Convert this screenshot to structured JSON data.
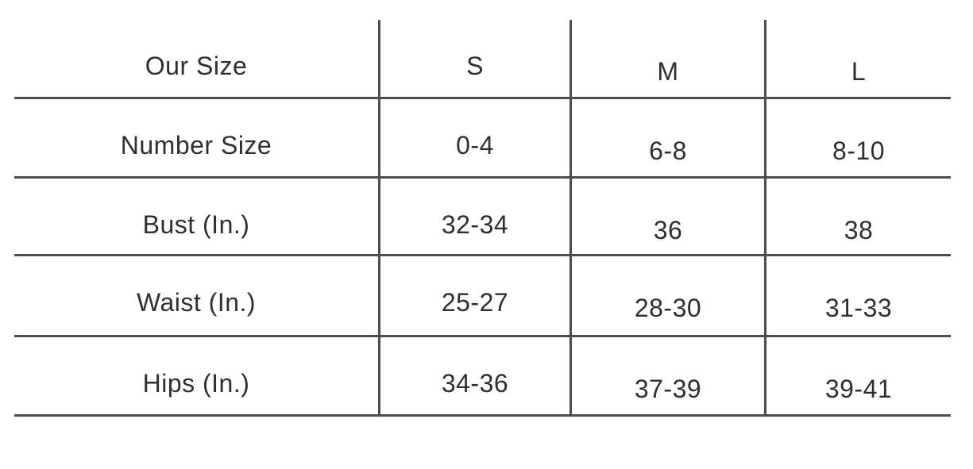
{
  "chart_data": {
    "type": "table",
    "columns": [
      "Our Size",
      "S",
      "M",
      "L"
    ],
    "rows": [
      [
        "Number Size",
        "0-4",
        "6-8",
        "8-10"
      ],
      [
        "Bust (In.)",
        "32-34",
        "36",
        "38"
      ],
      [
        "Waist (In.)",
        "25-27",
        "28-30",
        "31-33"
      ],
      [
        "Hips (In.)",
        "34-36",
        "37-39",
        "39-41"
      ]
    ],
    "layout_hints": {
      "grid": "horizontal rules below every row and vertical rules between columns; no outer left/right/top border",
      "alignment": "all cells centered"
    }
  },
  "colors": {
    "background": "#ffffff",
    "grid_line": "#4d4d4d",
    "text": "#2f2f2f"
  }
}
